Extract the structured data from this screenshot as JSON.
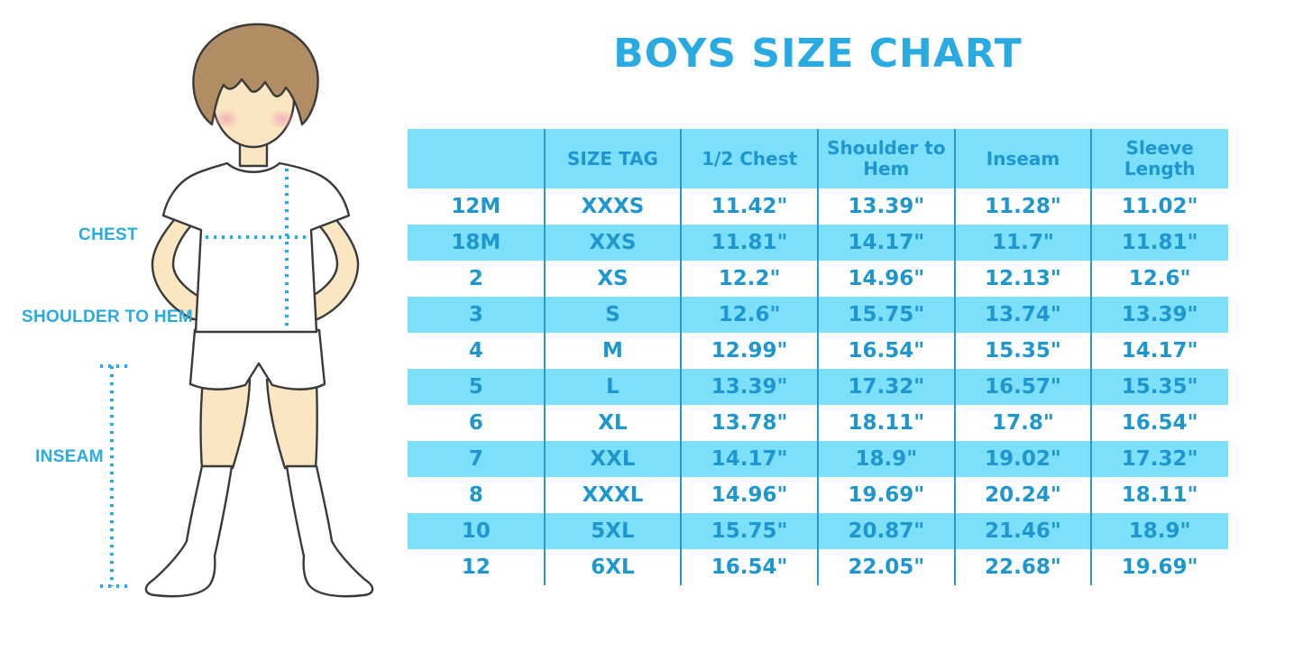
{
  "page": {
    "title": "BOYS SIZE CHART"
  },
  "figure": {
    "description": "outline illustration of a boy in white t-shirt, shorts and knee socks with measurement guides",
    "labels": {
      "chest": "CHEST",
      "shoulder_to_hem": "SHOULDER TO HEM",
      "inseam": "INSEAM"
    }
  },
  "colors": {
    "accent": "#29ABE2",
    "table_text": "#1E96CF",
    "stripe": "#7DE0FA",
    "divider": "#2B98CE",
    "outline": "#3A3A3A",
    "skin": "#FAE6C0",
    "hair": "#B28C63",
    "blush": "#F2A0B6"
  },
  "chart_data": {
    "type": "table",
    "title": "BOYS SIZE CHART",
    "columns": [
      "",
      "SIZE TAG",
      "1/2 Chest",
      "Shoulder to Hem",
      "Inseam",
      "Sleeve Length"
    ],
    "rows": [
      [
        "12M",
        "XXXS",
        "11.42\"",
        "13.39\"",
        "11.28\"",
        "11.02\""
      ],
      [
        "18M",
        "XXS",
        "11.81\"",
        "14.17\"",
        "11.7\"",
        "11.81\""
      ],
      [
        "2",
        "XS",
        "12.2\"",
        "14.96\"",
        "12.13\"",
        "12.6\""
      ],
      [
        "3",
        "S",
        "12.6\"",
        "15.75\"",
        "13.74\"",
        "13.39\""
      ],
      [
        "4",
        "M",
        "12.99\"",
        "16.54\"",
        "15.35\"",
        "14.17\""
      ],
      [
        "5",
        "L",
        "13.39\"",
        "17.32\"",
        "16.57\"",
        "15.35\""
      ],
      [
        "6",
        "XL",
        "13.78\"",
        "18.11\"",
        "17.8\"",
        "16.54\""
      ],
      [
        "7",
        "XXL",
        "14.17\"",
        "18.9\"",
        "19.02\"",
        "17.32\""
      ],
      [
        "8",
        "XXXL",
        "14.96\"",
        "19.69\"",
        "20.24\"",
        "18.11\""
      ],
      [
        "10",
        "5XL",
        "15.75\"",
        "20.87\"",
        "21.46\"",
        "18.9\""
      ],
      [
        "12",
        "6XL",
        "16.54\"",
        "22.05\"",
        "22.68\"",
        "19.69\""
      ]
    ],
    "striped_rows": [
      1,
      3,
      5,
      7,
      9
    ],
    "header_striped": true,
    "grid": "vertical-dividers-only",
    "legend_position": "none"
  }
}
